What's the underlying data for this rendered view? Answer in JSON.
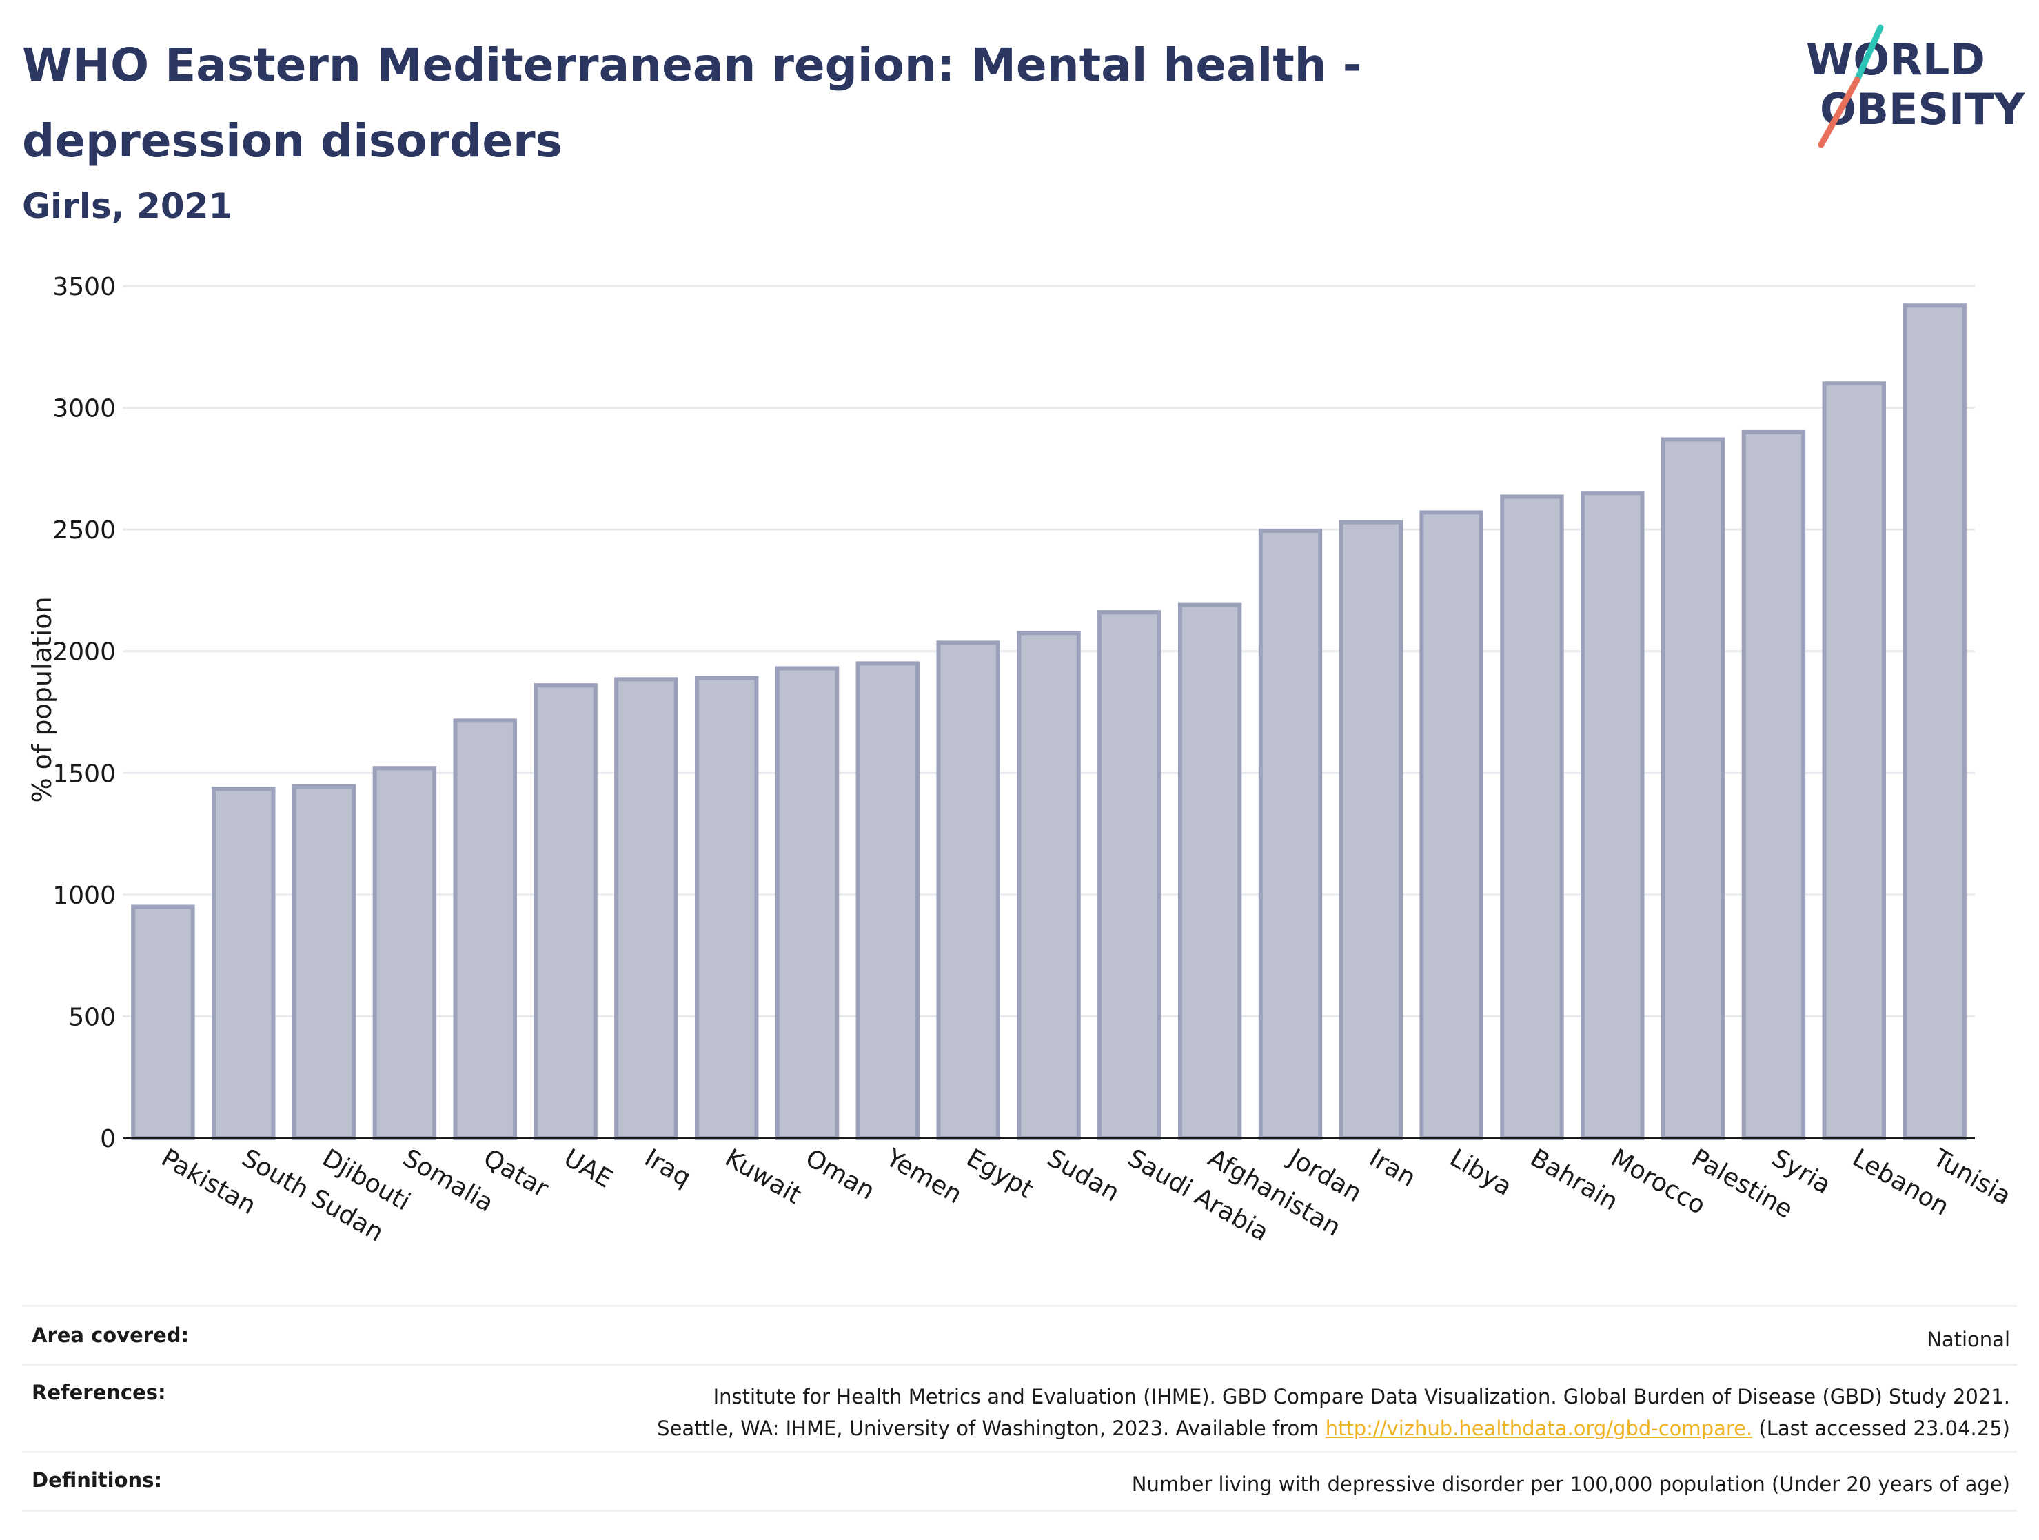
{
  "header": {
    "title": "WHO Eastern Mediterranean region: Mental health - depression disorders",
    "subtitle": "Girls, 2021"
  },
  "logo": {
    "line1": "WORLD",
    "line2": "OBESITY",
    "accent_teal": "#2ec4b6",
    "accent_coral": "#e8705a",
    "color": "#2b3661"
  },
  "chart_data": {
    "type": "bar",
    "ylabel": "% of population",
    "ylim": [
      0,
      3500
    ],
    "yticks": [
      0,
      500,
      1000,
      1500,
      2000,
      2500,
      3000,
      3500
    ],
    "grid": true,
    "bar_fill": "#bcc0cf",
    "bar_stroke": "#9ba1ba",
    "categories": [
      "Pakistan",
      "South Sudan",
      "Djibouti",
      "Somalia",
      "Qatar",
      "UAE",
      "Iraq",
      "Kuwait",
      "Oman",
      "Yemen",
      "Egypt",
      "Sudan",
      "Saudi Arabia",
      "Afghanistan",
      "Jordan",
      "Iran",
      "Libya",
      "Bahrain",
      "Morocco",
      "Palestine",
      "Syria",
      "Lebanon",
      "Tunisia"
    ],
    "values": [
      950,
      1435,
      1445,
      1520,
      1715,
      1860,
      1885,
      1890,
      1930,
      1950,
      2035,
      2075,
      2160,
      2190,
      2495,
      2530,
      2570,
      2635,
      2650,
      2870,
      2900,
      3100,
      3420
    ]
  },
  "footer": {
    "area_label": "Area covered:",
    "area_value": "National",
    "references_label": "References:",
    "references_line1": "Institute for Health Metrics and Evaluation (IHME). GBD Compare Data Visualization. Global Burden of Disease (GBD) Study 2021.",
    "references_line2_pre": "Seattle, WA: IHME, University of Washington, 2023. Available from ",
    "references_link": "http://vizhub.healthdata.org/gbd-compare.",
    "references_line2_post": " (Last accessed 23.04.25)",
    "definitions_label": "Definitions:",
    "definitions_value": "Number living with depressive disorder per 100,000 population (Under 20 years of age)"
  }
}
